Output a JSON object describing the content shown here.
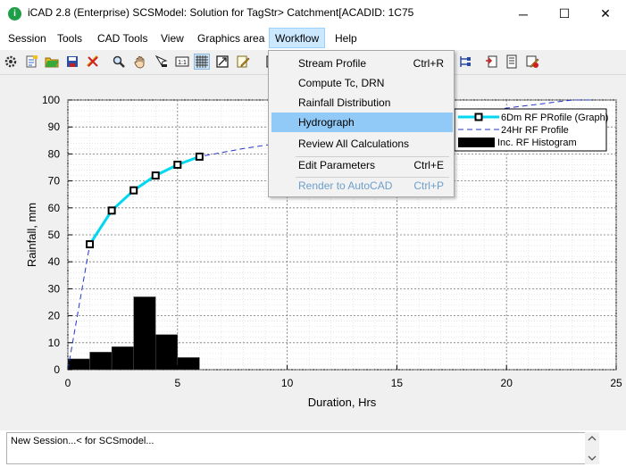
{
  "window": {
    "title": "iCAD 2.8  (Enterprise) SCSModel: Solution for TagStr> Catchment[ACADID: 1C75",
    "minimize": "─",
    "maximize": "☐",
    "close": "✕"
  },
  "menubar": {
    "items": [
      {
        "label": "Session"
      },
      {
        "label": "Tools"
      },
      {
        "label": "CAD Tools"
      },
      {
        "label": "View"
      },
      {
        "label": "Graphics area"
      },
      {
        "label": "Workflow"
      },
      {
        "label": "Help"
      }
    ]
  },
  "workflow_menu": {
    "items": [
      {
        "label": "Stream Profile",
        "shortcut": "Ctrl+R"
      },
      {
        "label": "Compute Tc, DRN",
        "shortcut": ""
      },
      {
        "label": "Rainfall Distribution",
        "shortcut": ""
      },
      {
        "label": "Hydrograph",
        "shortcut": ""
      },
      {
        "label": "Review All Calculations",
        "shortcut": ""
      },
      {
        "label": "Edit Parameters",
        "shortcut": "Ctrl+E"
      },
      {
        "label": "Render to AutoCAD",
        "shortcut": "Ctrl+P"
      }
    ],
    "highlighted": "Hydrograph",
    "disabled": "Render to AutoCAD"
  },
  "status": {
    "text": "New Session...< for SCSmodel..."
  },
  "colors": {
    "graph_line": "#00d8f0",
    "profile_line": "#2233cc",
    "histogram": "#000000",
    "menu_highlight": "#91c9f7",
    "disabled_text": "#6d9fcc"
  },
  "chart_data": {
    "type": "line",
    "xlabel": "Duration, Hrs",
    "ylabel": "Rainfall, mm",
    "xlim": [
      0,
      25
    ],
    "ylim": [
      0,
      100
    ],
    "xticks": [
      0,
      5,
      10,
      15,
      20,
      25
    ],
    "yticks": [
      0,
      10,
      20,
      30,
      40,
      50,
      60,
      70,
      80,
      90,
      100
    ],
    "grid": true,
    "legend_position": "top-right",
    "series": [
      {
        "name": "6Dm RF PRofile (Graph)",
        "type": "line-markers",
        "x": [
          1,
          2,
          3,
          4,
          5,
          6
        ],
        "y": [
          46.5,
          59,
          66.5,
          72,
          76,
          79
        ]
      },
      {
        "name": "24Hr RF Profile",
        "type": "dashed-line",
        "x": [
          0,
          1,
          2,
          3,
          4,
          5,
          6,
          8,
          10,
          12,
          14,
          16,
          18,
          20,
          22,
          23,
          24
        ],
        "y": [
          0,
          46.5,
          59,
          66.5,
          72,
          76,
          79,
          82,
          84.5,
          87,
          89.5,
          92,
          94.5,
          97,
          99,
          100,
          100
        ]
      },
      {
        "name": "Inc. RF Histogram",
        "type": "bar",
        "x": [
          0.5,
          1.5,
          2.5,
          3.5,
          4.5,
          5.5
        ],
        "y": [
          4,
          6.5,
          8.5,
          27,
          13,
          4.5
        ]
      }
    ]
  }
}
